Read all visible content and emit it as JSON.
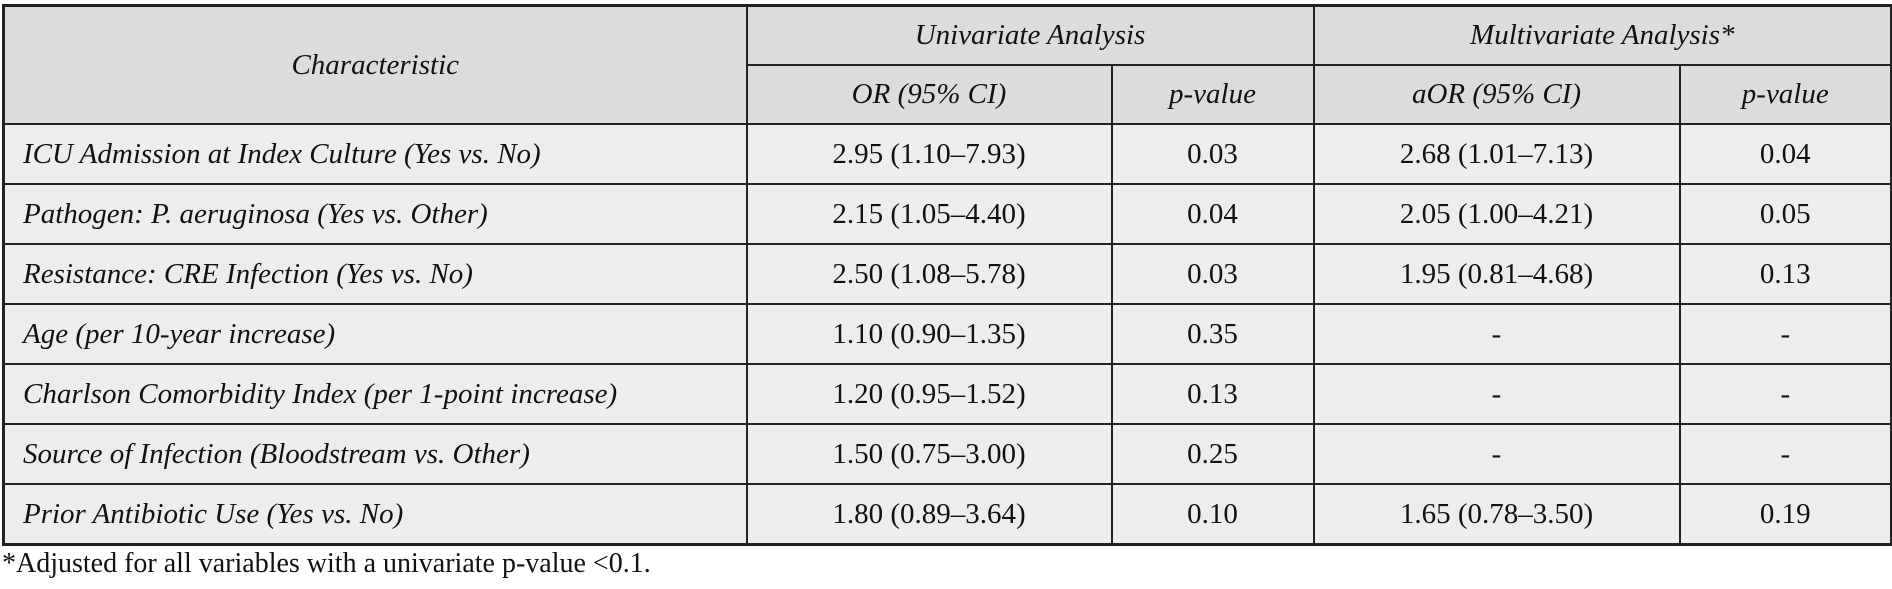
{
  "table": {
    "header": {
      "characteristic": "Characteristic",
      "univariate": "Univariate Analysis",
      "multivariate": "Multivariate Analysis*",
      "columns": [
        "OR (95% CI)",
        "p-value",
        "aOR (95% CI)",
        "p-value"
      ]
    },
    "rows": [
      [
        "ICU Admission at Index Culture (Yes vs. No)",
        "2.95 (1.10–7.93)",
        "0.03",
        "2.68 (1.01–7.13)",
        "0.04"
      ],
      [
        "Pathogen: P. aeruginosa (Yes vs. Other)",
        "2.15 (1.05–4.40)",
        "0.04",
        "2.05 (1.00–4.21)",
        "0.05"
      ],
      [
        "Resistance: CRE Infection (Yes vs. No)",
        "2.50 (1.08–5.78)",
        "0.03",
        "1.95 (0.81–4.68)",
        "0.13"
      ],
      [
        "Age (per 10-year increase)",
        "1.10 (0.90–1.35)",
        "0.35",
        "-",
        "-"
      ],
      [
        "Charlson Comorbidity Index (per 1-point increase)",
        "1.20 (0.95–1.52)",
        "0.13",
        "-",
        "-"
      ],
      [
        "Source of Infection (Bloodstream vs. Other)",
        "1.50 (0.75–3.00)",
        "0.25",
        "-",
        "-"
      ],
      [
        "Prior Antibiotic Use (Yes vs. No)",
        "1.80 (0.89–3.64)",
        "0.10",
        "1.65 (0.78–3.50)",
        "0.19"
      ]
    ]
  },
  "footnote": "*Adjusted for all variables with a univariate p-value <0.1."
}
